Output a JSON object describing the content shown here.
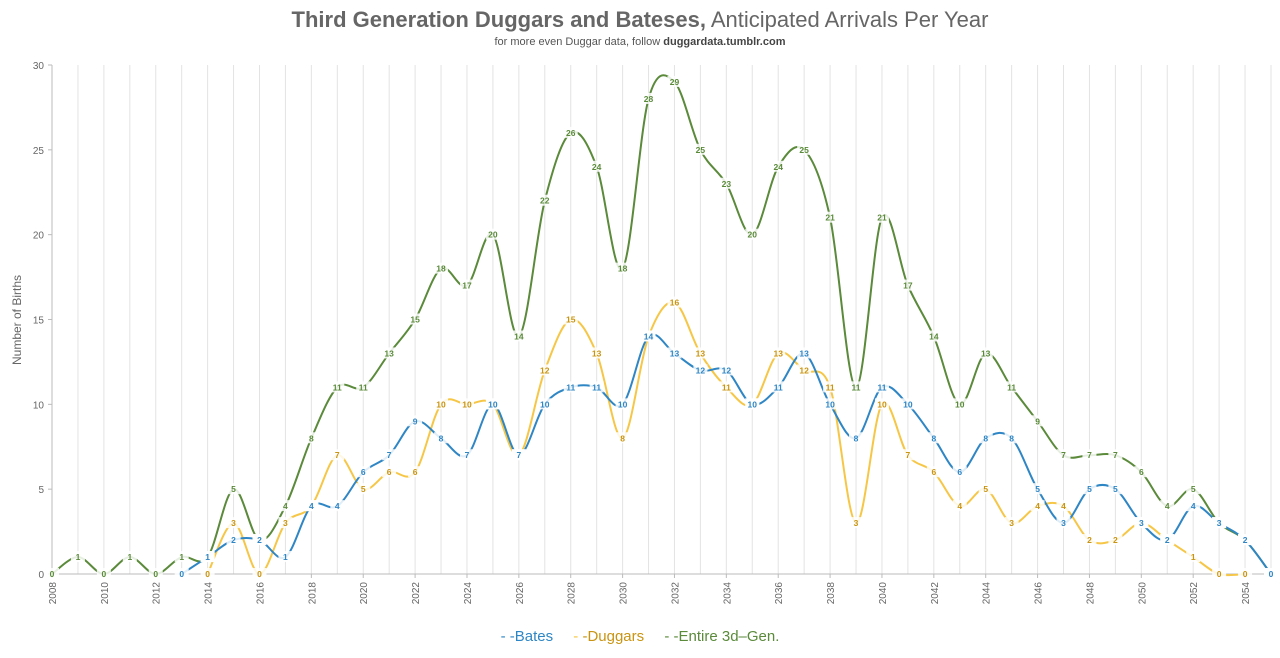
{
  "chart_data": {
    "type": "line",
    "title_bold": "Third Generation Duggars and Bateses,",
    "title_rest": " Anticipated Arrivals Per Year",
    "subtitle_prefix": "for more even Duggar data, follow ",
    "subtitle_link": "duggardata.tumblr.com",
    "ylabel": "Number of Births",
    "xlabel": "",
    "ylim": [
      0,
      30
    ],
    "xlim": [
      2008,
      2055
    ],
    "y_ticks": [
      "0",
      "5",
      "10",
      "15",
      "20",
      "25",
      "30"
    ],
    "x_ticks": [
      "2008",
      "2010",
      "2012",
      "2014",
      "2016",
      "2018",
      "2020",
      "2022",
      "2024",
      "2026",
      "2028",
      "2030",
      "2032",
      "2034",
      "2036",
      "2038",
      "2040",
      "2042",
      "2044",
      "2046",
      "2048",
      "2050",
      "2052",
      "2054"
    ],
    "grid": "vertical lines every year",
    "legend_position": "bottom-center",
    "series": [
      {
        "name": "Bates",
        "legend_label": "-Bates",
        "color": "#2f86c5",
        "x": [
          2013,
          2014,
          2015,
          2016,
          2017,
          2018,
          2019,
          2020,
          2021,
          2022,
          2023,
          2024,
          2025,
          2026,
          2027,
          2028,
          2029,
          2030,
          2031,
          2032,
          2033,
          2034,
          2035,
          2036,
          2037,
          2038,
          2039,
          2040,
          2041,
          2042,
          2043,
          2044,
          2045,
          2046,
          2047,
          2048,
          2049,
          2050,
          2051,
          2052,
          2053,
          2054,
          2055
        ],
        "values": [
          0,
          1,
          2,
          2,
          1,
          4,
          4,
          6,
          7,
          9,
          8,
          7,
          10,
          7,
          10,
          11,
          11,
          10,
          14,
          13,
          12,
          12,
          10,
          11,
          13,
          10,
          8,
          11,
          10,
          8,
          6,
          8,
          8,
          5,
          3,
          5,
          5,
          3,
          2,
          4,
          3,
          2,
          0
        ],
        "labels": [
          "0",
          "1",
          "2",
          "2",
          "1",
          "4",
          "4",
          "6",
          "7",
          "9",
          "8",
          "7",
          "10",
          "7",
          "10",
          "11",
          "11",
          "10",
          "14",
          "13",
          "12",
          "12",
          "10",
          "11",
          "13",
          "10",
          "8",
          "11",
          "10",
          "8",
          "6",
          "8",
          "8",
          "5",
          "3",
          "5",
          "5",
          "3",
          "2",
          "4",
          "3",
          "2",
          "0"
        ]
      },
      {
        "name": "Duggars",
        "legend_label": "-Duggars",
        "color": "#f6c646",
        "label_color": "#c99412",
        "x": [
          2014,
          2015,
          2016,
          2017,
          2018,
          2019,
          2020,
          2021,
          2022,
          2023,
          2024,
          2025,
          2026,
          2027,
          2028,
          2029,
          2030,
          2031,
          2032,
          2033,
          2034,
          2035,
          2036,
          2037,
          2038,
          2039,
          2040,
          2041,
          2042,
          2043,
          2044,
          2045,
          2046,
          2047,
          2048,
          2049,
          2050,
          2051,
          2052,
          2053,
          2054
        ],
        "values": [
          0,
          3,
          0,
          3,
          4,
          7,
          5,
          6,
          6,
          10,
          10,
          10,
          7,
          12,
          15,
          13,
          8,
          14,
          16,
          13,
          11,
          10,
          13,
          12,
          11,
          3,
          10,
          7,
          6,
          4,
          5,
          3,
          4,
          4,
          2,
          2,
          3,
          2,
          1,
          0,
          0
        ],
        "labels": [
          "0",
          "3",
          "0",
          "3",
          "4",
          "7",
          "5",
          "6",
          "6",
          "10",
          "10",
          "10",
          "7",
          "12",
          "15",
          "13",
          "8",
          "14",
          "16",
          "13",
          "11",
          "10",
          "13",
          "12",
          "11",
          "3",
          "10",
          "7",
          "6",
          "4",
          "5",
          "3",
          "4",
          "4",
          "2",
          "2",
          "3",
          "2",
          "1",
          "0",
          "0"
        ]
      },
      {
        "name": "Entire 3d–Gen.",
        "legend_label": "-Entire 3d–Gen.",
        "color": "#5a8a3a",
        "x": [
          2008,
          2009,
          2010,
          2011,
          2012,
          2013,
          2014,
          2015,
          2016,
          2017,
          2018,
          2019,
          2020,
          2021,
          2022,
          2023,
          2024,
          2025,
          2026,
          2027,
          2028,
          2029,
          2030,
          2031,
          2032,
          2033,
          2034,
          2035,
          2036,
          2037,
          2038,
          2039,
          2040,
          2041,
          2042,
          2043,
          2044,
          2045,
          2046,
          2047,
          2048,
          2049,
          2050,
          2051,
          2052,
          2053,
          2054,
          2055
        ],
        "values": [
          0,
          1,
          0,
          1,
          0,
          1,
          1,
          5,
          2,
          4,
          8,
          11,
          11,
          13,
          15,
          18,
          17,
          20,
          14,
          22,
          26,
          24,
          18,
          28,
          29,
          25,
          23,
          20,
          24,
          25,
          21,
          11,
          21,
          17,
          14,
          10,
          13,
          11,
          9,
          7,
          7,
          7,
          6,
          4,
          5,
          3,
          2,
          0
        ],
        "labels": [
          "0",
          "1",
          "0",
          "1",
          "0",
          "1",
          "1",
          "5",
          "2",
          "4",
          "8",
          "11",
          "11",
          "13",
          "15",
          "18",
          "17",
          "20",
          "14",
          "22",
          "26",
          "24",
          "18",
          "28",
          "29",
          "25",
          "23",
          "20",
          "24",
          "25",
          "21",
          "11",
          "21",
          "17",
          "14",
          "10",
          "13",
          "11",
          "9",
          "7",
          "7",
          "7",
          "6",
          "4",
          "5",
          "3",
          "2",
          "0"
        ]
      }
    ]
  }
}
